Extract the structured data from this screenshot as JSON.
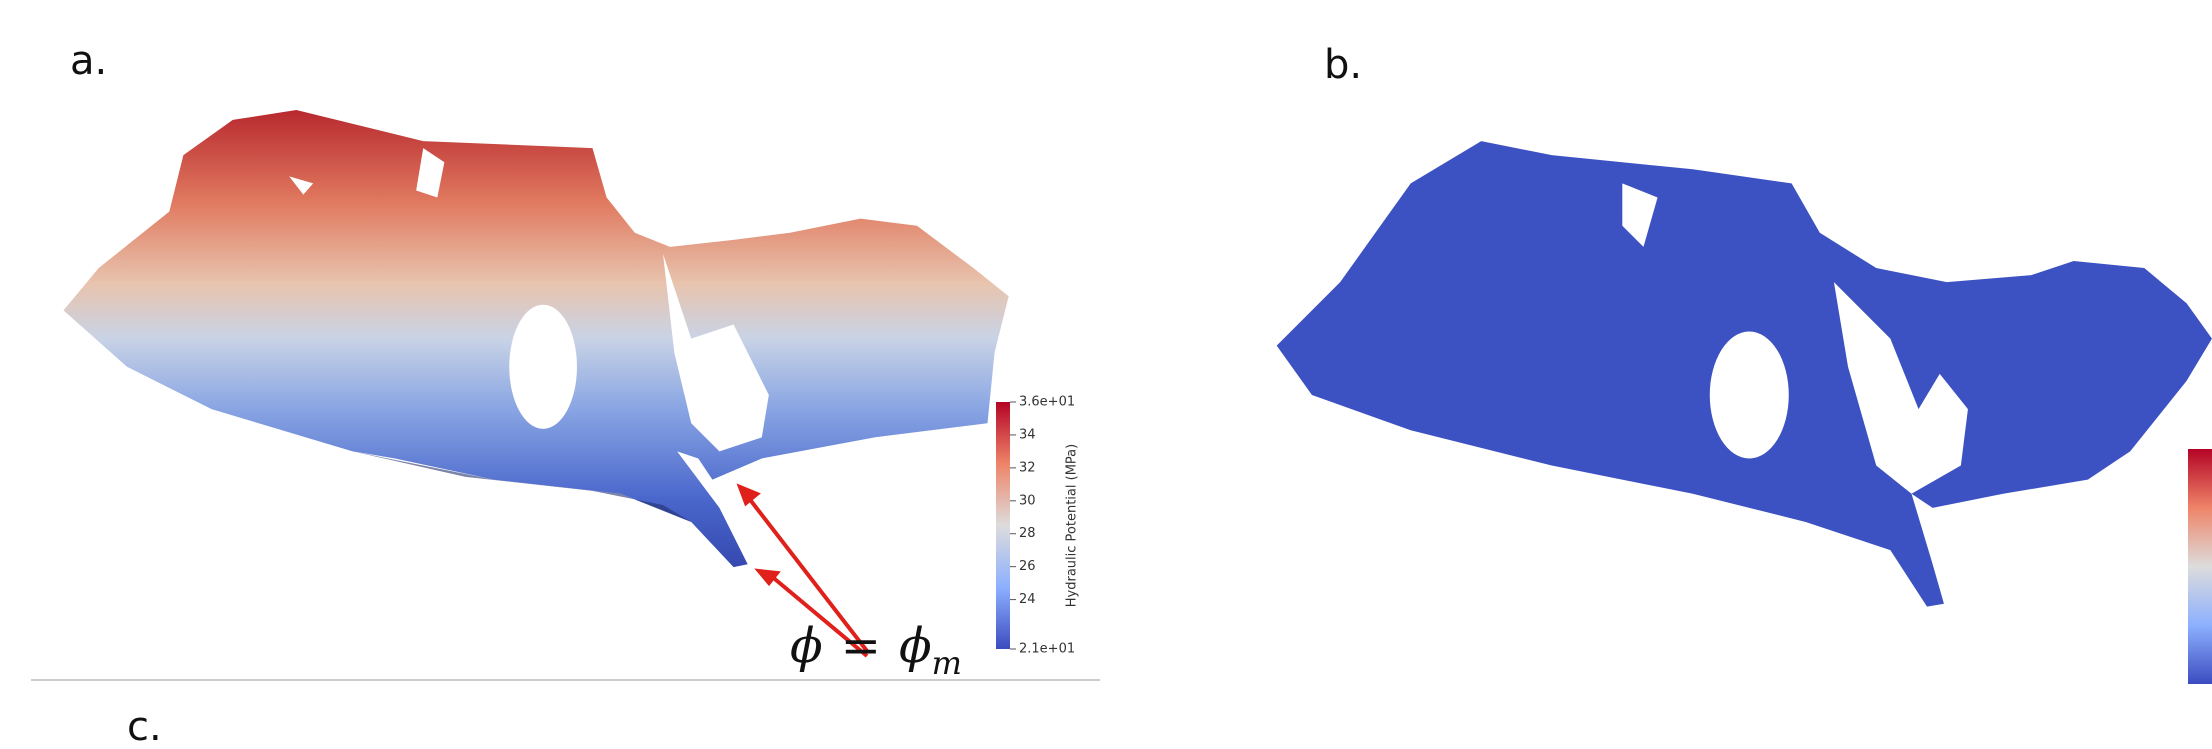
{
  "panels": {
    "a": {
      "label": "a.",
      "colorbar": {
        "title": "Hydraulic Potential (MPa)",
        "range": [
          21,
          36
        ],
        "ticks": [
          {
            "value": 36,
            "label": "3.6e+01"
          },
          34,
          32,
          30,
          28,
          26,
          24,
          {
            "value": 21,
            "label": "2.1e+01"
          }
        ]
      },
      "equation": {
        "lhs": "ϕ",
        "op": "=",
        "rhs": "ϕ",
        "sub": "m"
      }
    },
    "b": {
      "label": "b."
    },
    "c": {
      "label": "c."
    }
  }
}
